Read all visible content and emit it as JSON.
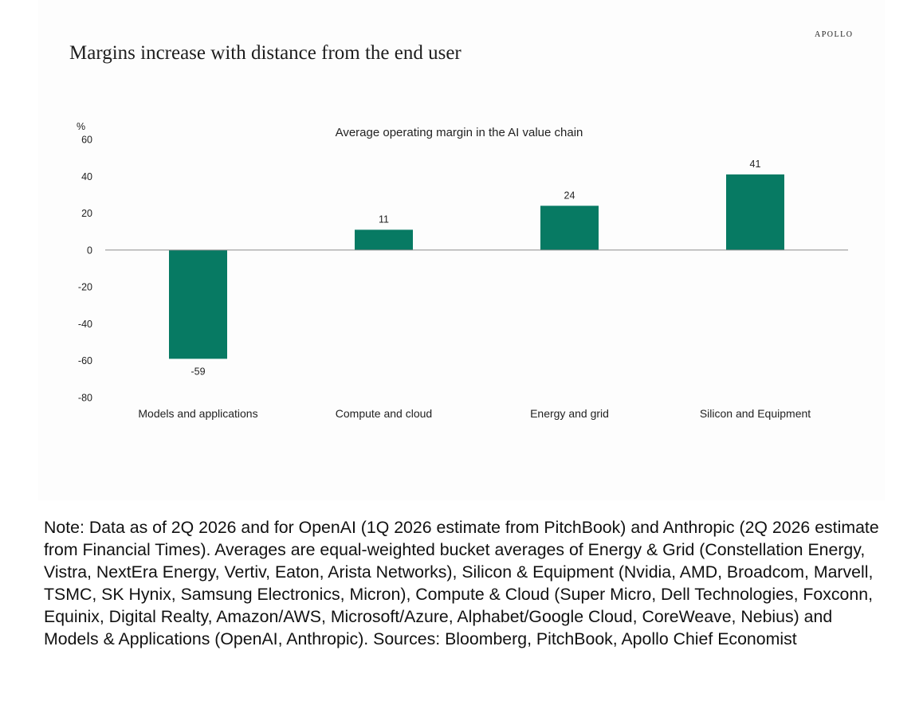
{
  "brand": "APOLLO",
  "title": "Margins increase with distance from the end user",
  "note": "Note: Data as of 2Q 2026 and for OpenAI (1Q 2026 estimate from PitchBook) and Anthropic (2Q 2026 estimate from Financial Times). Averages are equal-weighted bucket averages of Energy & Grid (Constellation Energy, Vistra, NextEra Energy, Vertiv, Eaton, Arista Networks), Silicon & Equipment (Nvidia, AMD, Broadcom, Marvell, TSMC, SK Hynix, Samsung Electronics, Micron), Compute & Cloud (Super Micro, Dell Technologies, Foxconn, Equinix, Digital Realty, Amazon/AWS, Microsoft/Azure, Alphabet/Google Cloud, CoreWeave, Nebius) and Models & Applications (OpenAI, Anthropic). Sources: Bloomberg, PitchBook, Apollo Chief Economist",
  "chart_data": {
    "type": "bar",
    "title": "Average operating margin in the AI value chain",
    "ylabel": "%",
    "categories": [
      "Models and applications",
      "Compute and cloud",
      "Energy and grid",
      "Silicon and Equipment"
    ],
    "values": [
      -59,
      11,
      24,
      41
    ],
    "data_labels": [
      "-59",
      "11",
      "24",
      "41"
    ],
    "ylim": [
      -80,
      60
    ],
    "yticks": [
      60,
      40,
      20,
      0,
      -20,
      -40,
      -60,
      -80
    ],
    "grid": false,
    "legend": "none",
    "bar_color": "#077a63"
  }
}
